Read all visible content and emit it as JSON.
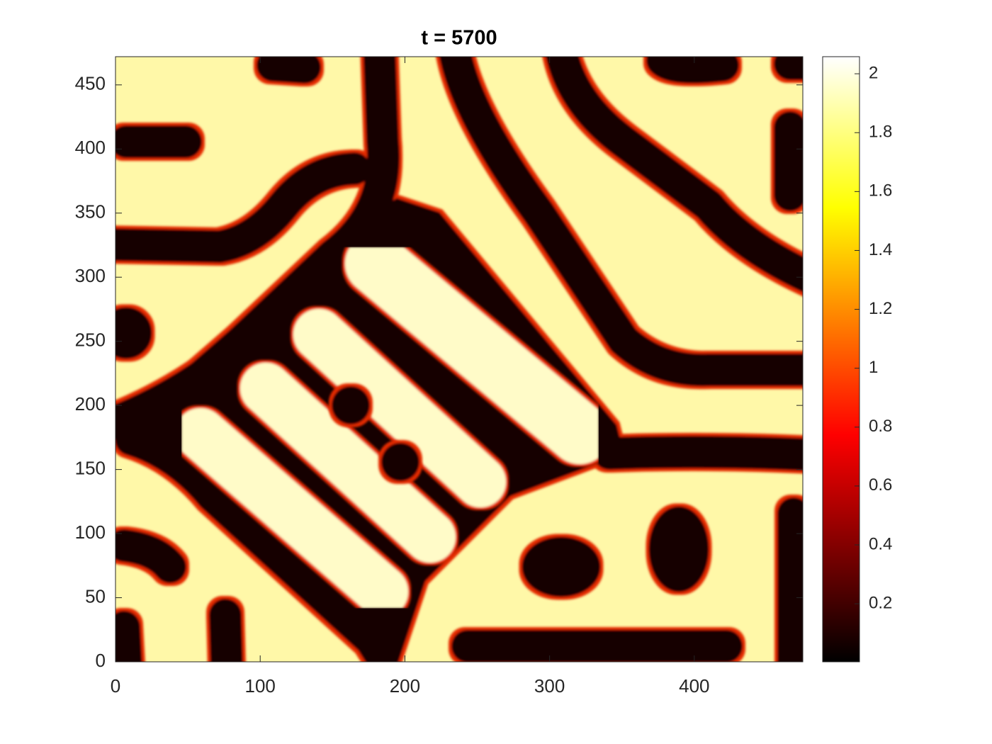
{
  "chart_data": {
    "type": "heatmap",
    "title": "t = 5700",
    "colormap": "hot",
    "xlim": [
      0,
      475
    ],
    "ylim": [
      0,
      472
    ],
    "xticks": [
      0,
      100,
      200,
      300,
      400
    ],
    "yticks": [
      0,
      50,
      100,
      150,
      200,
      250,
      300,
      350,
      400,
      450
    ],
    "colorbar": {
      "clim": [
        0.003,
        2.058
      ],
      "ticks": [
        0.2,
        0.4,
        0.6,
        0.8,
        1,
        1.2,
        1.4,
        1.6,
        1.8,
        2
      ]
    }
  }
}
